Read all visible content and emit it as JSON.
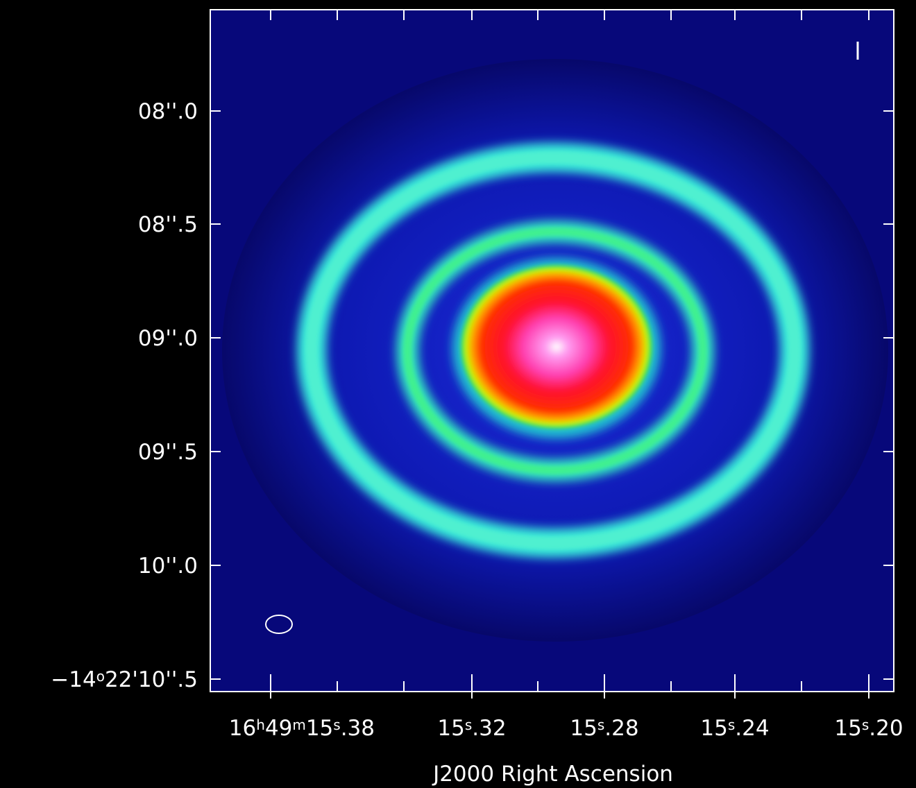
{
  "axes": {
    "y_ticks": [
      [
        {
          "t": "08''.0"
        }
      ],
      [
        {
          "t": "08''.5"
        }
      ],
      [
        {
          "t": "09''.0"
        }
      ],
      [
        {
          "t": "09''.5"
        }
      ],
      [
        {
          "t": "10''.0"
        }
      ],
      [
        {
          "t": "−14"
        },
        {
          "t": "o",
          "sup": true
        },
        {
          "t": "22'10''.5"
        }
      ]
    ],
    "x_ticks": [
      [
        {
          "t": "16"
        },
        {
          "t": "h",
          "sup": true
        },
        {
          "t": "49"
        },
        {
          "t": "m",
          "sup": true
        },
        {
          "t": "15"
        },
        {
          "t": "s",
          "sup": true
        },
        {
          "t": ".38"
        }
      ],
      [
        {
          "t": "15"
        },
        {
          "t": "s",
          "sup": true
        },
        {
          "t": ".32"
        }
      ],
      [
        {
          "t": "15"
        },
        {
          "t": "s",
          "sup": true
        },
        {
          "t": ".28"
        }
      ],
      [
        {
          "t": "15"
        },
        {
          "t": "s",
          "sup": true
        },
        {
          "t": ".24"
        }
      ],
      [
        {
          "t": "15"
        },
        {
          "t": "s",
          "sup": true
        },
        {
          "t": ".20"
        }
      ]
    ],
    "x_label": "J2000 Right Ascension"
  }
}
